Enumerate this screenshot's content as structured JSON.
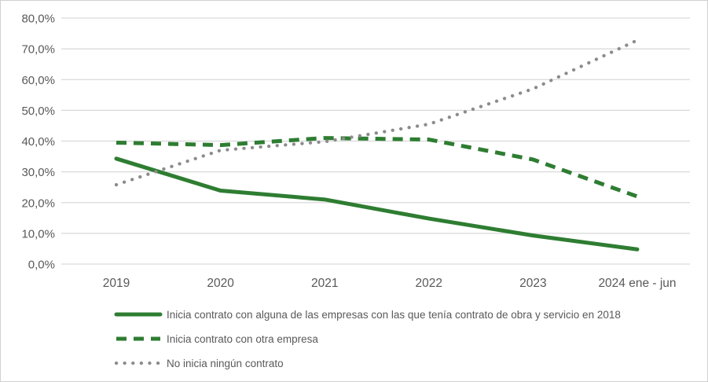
{
  "chart_data": {
    "type": "line",
    "categories": [
      "2019",
      "2020",
      "2021",
      "2022",
      "2023",
      "2024 ene - jun"
    ],
    "series": [
      {
        "name": "Inicia contrato con alguna de las empresas con las que tenía contrato de obra y servicio en 2018",
        "values": [
          34.3,
          23.9,
          21.0,
          14.8,
          9.3,
          4.8
        ],
        "color": "#2e7d32",
        "line_style": "solid"
      },
      {
        "name": "Inicia contrato con otra empresa",
        "values": [
          39.5,
          38.7,
          41.0,
          40.5,
          34.0,
          22.0
        ],
        "color": "#2e7d32",
        "line_style": "dashed"
      },
      {
        "name": "No inicia ningún contrato",
        "values": [
          25.8,
          37.0,
          39.8,
          45.5,
          57.0,
          72.8
        ],
        "color": "#8c8c8c",
        "line_style": "dotted"
      }
    ],
    "title": "",
    "xlabel": "",
    "ylabel": "",
    "ylim": [
      0,
      80
    ],
    "ytick_step": 10,
    "ytick_labels": [
      "0,0%",
      "10,0%",
      "20,0%",
      "30,0%",
      "40,0%",
      "50,0%",
      "60,0%",
      "70,0%",
      "80,0%"
    ],
    "grid": true,
    "legend_position": "bottom-left"
  },
  "colors": {
    "background": "#ffffff",
    "border": "#d0d0d0",
    "gridline": "#d9d9d9",
    "tick_text": "#595959",
    "legend_text": "#595959",
    "accent_green": "#2e7d32",
    "accent_gray": "#8c8c8c"
  }
}
